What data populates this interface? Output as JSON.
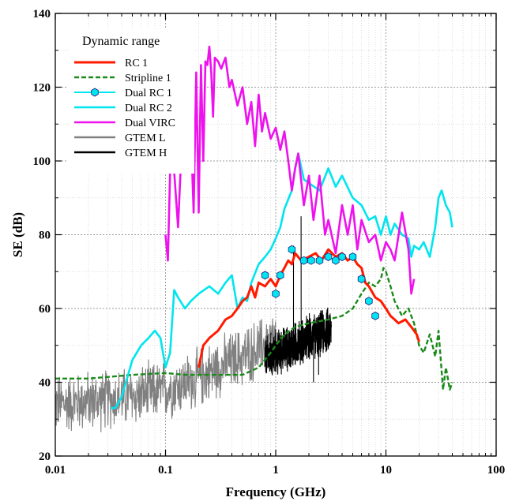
{
  "chart_data": {
    "type": "line",
    "xlabel": "Frequency (GHz)",
    "ylabel": "SE (dB)",
    "x_scale": "log",
    "xlim": [
      0.01,
      100
    ],
    "ylim": [
      20,
      140
    ],
    "x_ticks": [
      0.01,
      0.1,
      1,
      10,
      100
    ],
    "x_tick_labels": [
      "0.01",
      "0.1",
      "1",
      "10",
      "100"
    ],
    "y_ticks": [
      20,
      40,
      60,
      80,
      100,
      120,
      140
    ],
    "y_tick_labels": [
      "20",
      "40",
      "60",
      "80",
      "100",
      "120",
      "140"
    ],
    "grid": true,
    "legend": {
      "title": "Dynamic range",
      "position": "top-left",
      "entries": [
        "RC 1",
        "Stripline 1",
        "Dual RC 1",
        "Dual RC 2",
        "Dual VIRC",
        "GTEM L",
        "GTEM H"
      ]
    },
    "series": [
      {
        "name": "RC 1",
        "color": "#ff1a00",
        "style": "solid",
        "x": [
          0.2,
          0.22,
          0.25,
          0.3,
          0.35,
          0.4,
          0.45,
          0.5,
          0.55,
          0.6,
          0.65,
          0.7,
          0.8,
          0.9,
          1.0,
          1.1,
          1.2,
          1.3,
          1.4,
          1.5,
          1.7,
          2.0,
          2.3,
          2.6,
          3.0,
          3.5,
          4.0,
          4.5,
          5.0,
          5.5,
          6.0,
          6.5,
          7.0,
          8.0,
          9.0,
          10,
          11,
          12,
          13,
          15,
          17,
          19,
          20
        ],
        "y": [
          44,
          50,
          52,
          54,
          57,
          58,
          60,
          62,
          63,
          66,
          63,
          67,
          66,
          68,
          66,
          69,
          71,
          73,
          72,
          75,
          73,
          74,
          75,
          73,
          76,
          74,
          75,
          73,
          74,
          72,
          71,
          67,
          66,
          63,
          62,
          60,
          58,
          57,
          56,
          57,
          55,
          53,
          51
        ]
      },
      {
        "name": "Stripline 1",
        "color": "#1a8a1a",
        "style": "dashed",
        "x": [
          0.01,
          0.02,
          0.05,
          0.1,
          0.15,
          0.2,
          0.3,
          0.5,
          0.7,
          0.9,
          1.0,
          1.2,
          1.5,
          2.0,
          3.0,
          4.0,
          5.0,
          6.0,
          7.0,
          8.0,
          9.0,
          9.5,
          10,
          11,
          12,
          14,
          16,
          18,
          20,
          22,
          25,
          28,
          30,
          33,
          35,
          38,
          40
        ],
        "y": [
          41,
          41,
          42,
          42.5,
          42,
          42,
          42,
          42,
          44,
          48,
          50,
          53,
          55,
          56,
          57,
          58,
          60,
          64,
          67,
          66,
          68,
          71,
          70,
          66,
          62,
          58,
          60,
          56,
          50,
          48,
          53,
          47,
          54,
          38,
          44,
          38,
          40
        ]
      },
      {
        "name": "Dual RC 1",
        "color": "#00e5ee",
        "style": "markers",
        "x": [
          0.8,
          1.0,
          1.1,
          1.4,
          1.8,
          2.1,
          2.5,
          3.0,
          3.5,
          4.0,
          5.0,
          6.0,
          7.0,
          8.0
        ],
        "y": [
          69,
          64,
          69,
          76,
          73,
          73,
          73,
          74,
          73,
          74,
          74,
          68,
          62,
          58
        ]
      },
      {
        "name": "Dual RC 2",
        "color": "#00e5ee",
        "style": "solid",
        "x": [
          0.032,
          0.035,
          0.04,
          0.05,
          0.06,
          0.07,
          0.08,
          0.09,
          0.1,
          0.11,
          0.12,
          0.13,
          0.15,
          0.17,
          0.2,
          0.25,
          0.3,
          0.35,
          0.4,
          0.45,
          0.5,
          0.55,
          0.6,
          0.7,
          0.8,
          0.9,
          1.0,
          1.1,
          1.2,
          1.4,
          1.5,
          1.6,
          1.8,
          2.0,
          2.5,
          3.0,
          3.5,
          4.0,
          5.0,
          6.0,
          7.0,
          8.0,
          9.0,
          10,
          11,
          12,
          14,
          16,
          17,
          18,
          20,
          22,
          25,
          28,
          30,
          32,
          35,
          38,
          40
        ],
        "y": [
          33,
          33,
          36,
          46,
          50,
          52,
          54,
          52,
          44,
          48,
          65,
          63,
          60,
          62,
          64,
          66,
          64,
          67,
          69,
          60,
          63,
          62,
          67,
          72,
          74,
          76,
          79,
          82,
          87,
          92,
          98,
          102,
          95,
          94,
          92,
          98,
          93,
          96,
          90,
          88,
          84,
          85,
          80,
          85,
          80,
          83,
          80,
          79,
          74,
          77,
          76,
          78,
          74,
          82,
          90,
          92,
          88,
          86,
          82
        ]
      },
      {
        "name": "Dual VIRC",
        "color": "#ee11ee",
        "style": "solid",
        "x": [
          0.1,
          0.105,
          0.11,
          0.12,
          0.13,
          0.14,
          0.15,
          0.16,
          0.17,
          0.18,
          0.19,
          0.2,
          0.21,
          0.22,
          0.23,
          0.24,
          0.25,
          0.26,
          0.27,
          0.28,
          0.3,
          0.32,
          0.35,
          0.38,
          0.4,
          0.45,
          0.5,
          0.55,
          0.6,
          0.65,
          0.7,
          0.75,
          0.8,
          0.9,
          1.0,
          1.1,
          1.2,
          1.3,
          1.4,
          1.5,
          1.6,
          1.8,
          2.0,
          2.2,
          2.5,
          2.8,
          3.0,
          3.5,
          4.0,
          4.5,
          5.0,
          5.5,
          6.0,
          7.0,
          8.0,
          9.0,
          10,
          11,
          12,
          14,
          16,
          17,
          18
        ],
        "y": [
          80,
          73,
          97,
          97,
          82,
          104,
          110,
          123,
          108,
          86,
          124,
          86,
          126,
          100,
          127,
          126,
          131,
          124,
          112,
          128,
          127,
          125,
          128,
          120,
          122,
          115,
          120,
          110,
          116,
          104,
          118,
          108,
          113,
          106,
          109,
          103,
          108,
          100,
          92,
          98,
          102,
          88,
          96,
          84,
          96,
          80,
          84,
          75,
          88,
          80,
          88,
          76,
          84,
          78,
          80,
          73,
          78,
          76,
          73,
          86,
          76,
          64,
          68
        ]
      },
      {
        "name": "GTEM L",
        "color": "#808080",
        "style": "noisy",
        "x_range": [
          0.01,
          1.0
        ],
        "trend": {
          "x": [
            0.01,
            0.05,
            0.1,
            0.2,
            0.3,
            0.5,
            0.7,
            1.0
          ],
          "y": [
            34,
            36,
            38,
            41,
            44,
            47,
            49,
            52
          ]
        },
        "noise_amplitude_db": 8
      },
      {
        "name": "GTEM H",
        "color": "#000000",
        "style": "noisy",
        "x_range": [
          0.8,
          3.2
        ],
        "trend": {
          "x": [
            0.8,
            1.0,
            1.5,
            2.0,
            2.5,
            3.0
          ],
          "y": [
            46,
            48,
            50,
            52,
            53,
            54
          ]
        },
        "noise_amplitude_db": 6,
        "spikes": [
          {
            "x": 1.7,
            "y": 85
          },
          {
            "x": 2.2,
            "y": 40
          },
          {
            "x": 1.45,
            "y": 77
          },
          {
            "x": 2.45,
            "y": 42
          }
        ]
      }
    ]
  }
}
